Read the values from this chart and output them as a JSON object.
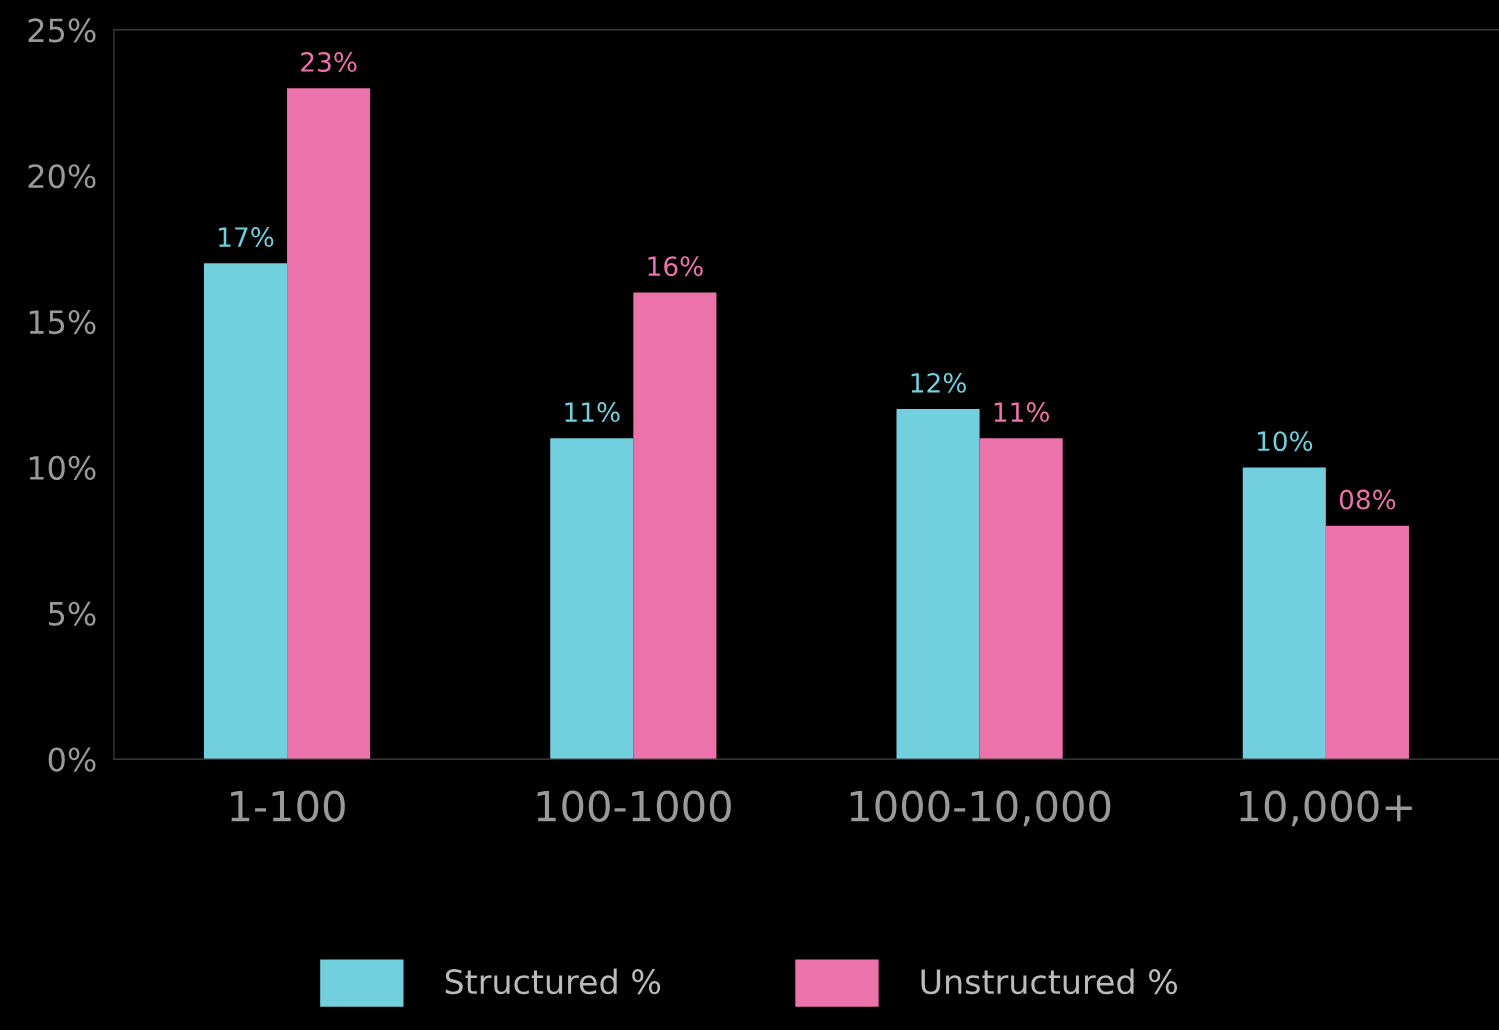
{
  "chart_data": {
    "type": "bar",
    "categories": [
      "1-100",
      "100-1000",
      "1000-10,000",
      "10,000+"
    ],
    "series": [
      {
        "name": "Structured %",
        "color": "#72cfdd",
        "values": [
          17,
          11,
          12,
          10
        ],
        "value_labels": [
          "17%",
          "11%",
          "12%",
          "10%"
        ]
      },
      {
        "name": "Unstructured %",
        "color": "#ec72ac",
        "values": [
          23,
          16,
          11,
          8
        ],
        "value_labels": [
          "23%",
          "16%",
          "11%",
          "08%"
        ]
      }
    ],
    "ylim": [
      0,
      25
    ],
    "yticks": [
      {
        "value": 0,
        "label": "0%"
      },
      {
        "value": 5,
        "label": "5%"
      },
      {
        "value": 10,
        "label": "10%"
      },
      {
        "value": 15,
        "label": "15%"
      },
      {
        "value": 20,
        "label": "20%"
      },
      {
        "value": 25,
        "label": "25%"
      }
    ],
    "grid": false,
    "legend": "bottom"
  }
}
